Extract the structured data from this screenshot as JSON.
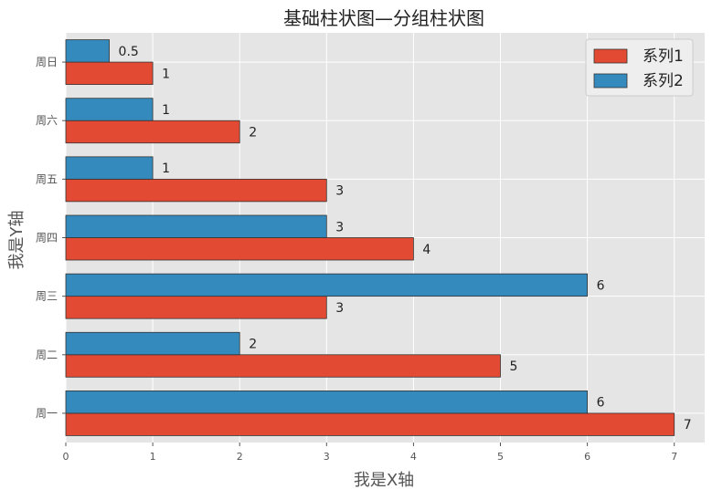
{
  "chart_data": {
    "type": "bar",
    "orientation": "horizontal",
    "title": "基础柱状图—分组柱状图",
    "xlabel": "我是X轴",
    "ylabel": "我是Y轴",
    "categories": [
      "周一",
      "周二",
      "周三",
      "周四",
      "周五",
      "周六",
      "周日"
    ],
    "series": [
      {
        "name": "系列1",
        "values": [
          7,
          5,
          3,
          4,
          3,
          2,
          1
        ],
        "color": "#E24A33"
      },
      {
        "name": "系列2",
        "values": [
          6,
          2,
          6,
          3,
          1,
          1,
          0.5
        ],
        "color": "#348ABD"
      }
    ],
    "data_labels": {
      "series1": [
        "7",
        "5",
        "3",
        "4",
        "3",
        "2",
        "1"
      ],
      "series2": [
        "6",
        "2",
        "6",
        "3",
        "1",
        "1",
        "0.5"
      ]
    },
    "xlim": [
      0,
      7.35
    ],
    "xticks": [
      "0",
      "1",
      "2",
      "3",
      "4",
      "5",
      "6",
      "7"
    ],
    "grid": true,
    "legend_position": "top-right",
    "style": {
      "plot_background": "#E5E5E5",
      "grid_color": "#FFFFFF",
      "bar_edge_color": "#333333",
      "text_color": "#222222",
      "tick_color": "#555555"
    }
  }
}
